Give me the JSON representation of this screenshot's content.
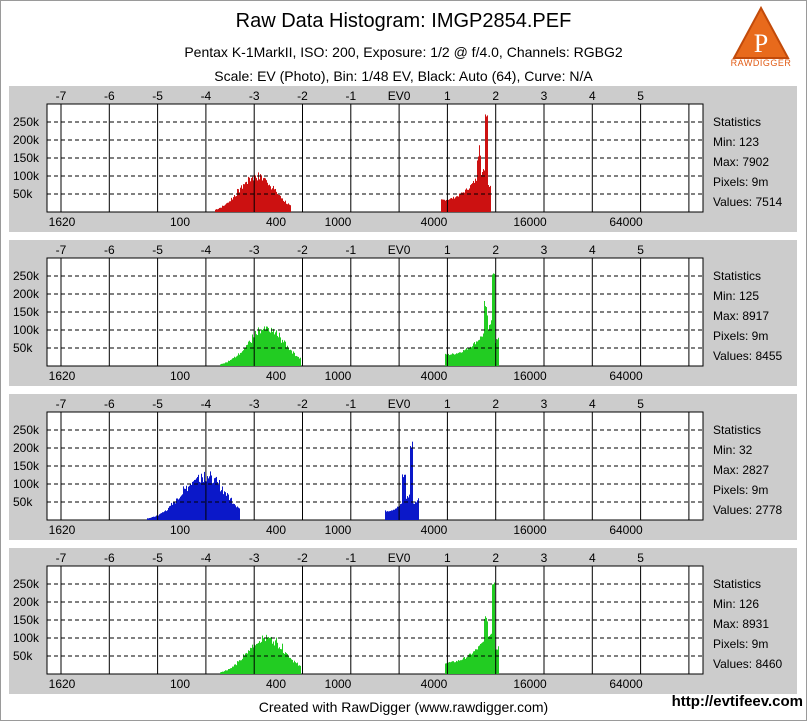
{
  "header": {
    "title": "Raw Data Histogram: IMGP2854.PEF",
    "subtitle1": "Pentax K-1MarkII, ISO: 200, Exposure: 1/2 @ f/4.0, Channels: RGBG2",
    "subtitle2": "Scale: EV (Photo), Bin: 1/48 EV, Black: Auto (64), Curve: N/A"
  },
  "logo": {
    "icon": "rawdigger-logo-icon",
    "text": "RAWDIGGER"
  },
  "footer": {
    "credit": "Created with RawDigger (www.rawdigger.com)",
    "watermark": "http://evtifeev.com"
  },
  "colors": {
    "panel_bg": "#cccccc",
    "plot_bg": "#ffffff",
    "red": "#cc1111",
    "green": "#22cc22",
    "blue": "#0b18c9"
  },
  "chart_data": [
    {
      "type": "bar",
      "channel": "R",
      "color": "#cc1111",
      "ev_ticks": [
        "-7",
        "-6",
        "-5",
        "-4",
        "-3",
        "-2",
        "-1",
        "EV0",
        "1",
        "2",
        "3",
        "4",
        "5"
      ],
      "x_value_labels": [
        "1620",
        "100",
        "400",
        "1000",
        "4000",
        "16000",
        "64000"
      ],
      "y_ticks": [
        "250k",
        "200k",
        "150k",
        "100k",
        "50k"
      ],
      "ylim": [
        0,
        300000
      ],
      "stats_label": "Statistics",
      "stats": {
        "min": "Min: 123",
        "max": "Max: 7902",
        "pixels": "Pixels: 9m",
        "values": "Values: 7514"
      },
      "peaks": [
        {
          "start_ev": -3.8,
          "end_ev": -2.25,
          "center_ev": -2.95,
          "height": 110000,
          "shape": "bell"
        },
        {
          "start_ev": 0.85,
          "end_ev": 1.9,
          "center_ev": 1.8,
          "height": 300000,
          "shape": "ramp"
        }
      ]
    },
    {
      "type": "bar",
      "channel": "G",
      "color": "#22cc22",
      "ev_ticks": [
        "-7",
        "-6",
        "-5",
        "-4",
        "-3",
        "-2",
        "-1",
        "EV0",
        "1",
        "2",
        "3",
        "4",
        "5"
      ],
      "x_value_labels": [
        "1620",
        "100",
        "400",
        "1000",
        "4000",
        "16000",
        "64000"
      ],
      "y_ticks": [
        "250k",
        "200k",
        "150k",
        "100k",
        "50k"
      ],
      "ylim": [
        0,
        300000
      ],
      "stats_label": "Statistics",
      "stats": {
        "min": "Min: 125",
        "max": "Max: 8917",
        "pixels": "Pixels: 9m",
        "values": "Values: 8455"
      },
      "peaks": [
        {
          "start_ev": -3.7,
          "end_ev": -2.05,
          "center_ev": -2.75,
          "height": 110000,
          "shape": "bell"
        },
        {
          "start_ev": 0.95,
          "end_ev": 2.05,
          "center_ev": 1.95,
          "height": 285000,
          "shape": "ramp"
        }
      ]
    },
    {
      "type": "bar",
      "channel": "B",
      "color": "#0b18c9",
      "ev_ticks": [
        "-7",
        "-6",
        "-5",
        "-4",
        "-3",
        "-2",
        "-1",
        "EV0",
        "1",
        "2",
        "3",
        "4",
        "5"
      ],
      "x_value_labels": [
        "1620",
        "100",
        "400",
        "1000",
        "4000",
        "16000",
        "64000"
      ],
      "y_ticks": [
        "250k",
        "200k",
        "150k",
        "100k",
        "50k"
      ],
      "ylim": [
        0,
        300000
      ],
      "stats_label": "Statistics",
      "stats": {
        "min": "Min: 32",
        "max": "Max: 2827",
        "pixels": "Pixels: 9m",
        "values": "Values: 2778"
      },
      "peaks": [
        {
          "start_ev": -5.2,
          "end_ev": -3.3,
          "center_ev": -4.05,
          "height": 135000,
          "shape": "bell"
        },
        {
          "start_ev": -0.3,
          "end_ev": 0.4,
          "center_ev": 0.25,
          "height": 225000,
          "shape": "ramp"
        }
      ]
    },
    {
      "type": "bar",
      "channel": "G2",
      "color": "#22cc22",
      "ev_ticks": [
        "-7",
        "-6",
        "-5",
        "-4",
        "-3",
        "-2",
        "-1",
        "EV0",
        "1",
        "2",
        "3",
        "4",
        "5"
      ],
      "x_value_labels": [
        "1620",
        "100",
        "400",
        "1000",
        "4000",
        "16000",
        "64000"
      ],
      "y_ticks": [
        "250k",
        "200k",
        "150k",
        "100k",
        "50k"
      ],
      "ylim": [
        0,
        300000
      ],
      "stats_label": "Statistics",
      "stats": {
        "min": "Min: 126",
        "max": "Max: 8931",
        "pixels": "Pixels: 9m",
        "values": "Values: 8460"
      },
      "peaks": [
        {
          "start_ev": -3.7,
          "end_ev": -2.05,
          "center_ev": -2.75,
          "height": 110000,
          "shape": "bell"
        },
        {
          "start_ev": 0.95,
          "end_ev": 2.05,
          "center_ev": 1.95,
          "height": 285000,
          "shape": "ramp"
        }
      ]
    }
  ]
}
